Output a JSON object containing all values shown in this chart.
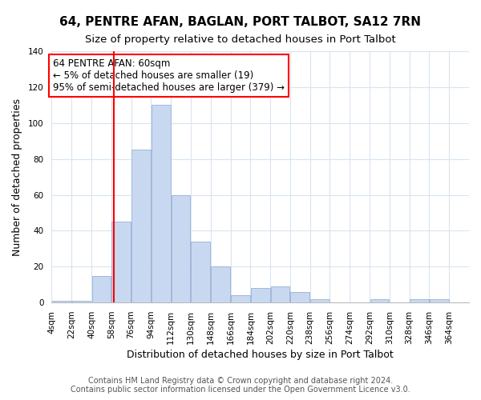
{
  "title": "64, PENTRE AFAN, BAGLAN, PORT TALBOT, SA12 7RN",
  "subtitle": "Size of property relative to detached houses in Port Talbot",
  "xlabel": "Distribution of detached houses by size in Port Talbot",
  "ylabel": "Number of detached properties",
  "bar_color": "#c8d8f0",
  "bar_edge_color": "#a0b8d8",
  "vline_x": 60,
  "vline_color": "red",
  "annotation_title": "64 PENTRE AFAN: 60sqm",
  "annotation_line1": "← 5% of detached houses are smaller (19)",
  "annotation_line2": "95% of semi-detached houses are larger (379) →",
  "annotation_box_color": "white",
  "annotation_box_edge": "red",
  "bins_left_edges": [
    4,
    22,
    40,
    58,
    76,
    94,
    112,
    130,
    148,
    166,
    184,
    202,
    220,
    238,
    256,
    274,
    292,
    310,
    328,
    346
  ],
  "bin_width": 18,
  "counts": [
    1,
    1,
    15,
    45,
    85,
    110,
    60,
    34,
    20,
    4,
    8,
    9,
    6,
    2,
    0,
    0,
    2,
    0,
    2,
    2
  ],
  "xtick_labels": [
    "4sqm",
    "22sqm",
    "40sqm",
    "58sqm",
    "76sqm",
    "94sqm",
    "112sqm",
    "130sqm",
    "148sqm",
    "166sqm",
    "184sqm",
    "202sqm",
    "220sqm",
    "238sqm",
    "256sqm",
    "274sqm",
    "292sqm",
    "310sqm",
    "328sqm",
    "346sqm",
    "364sqm"
  ],
  "ylim": [
    0,
    140
  ],
  "yticks": [
    0,
    20,
    40,
    60,
    80,
    100,
    120,
    140
  ],
  "footer_line1": "Contains HM Land Registry data © Crown copyright and database right 2024.",
  "footer_line2": "Contains public sector information licensed under the Open Government Licence v3.0.",
  "title_fontsize": 11,
  "subtitle_fontsize": 9.5,
  "axis_label_fontsize": 9,
  "tick_fontsize": 7.5,
  "footer_fontsize": 7,
  "annotation_fontsize": 8.5,
  "background_color": "#ffffff",
  "grid_color": "#d8e4f0"
}
